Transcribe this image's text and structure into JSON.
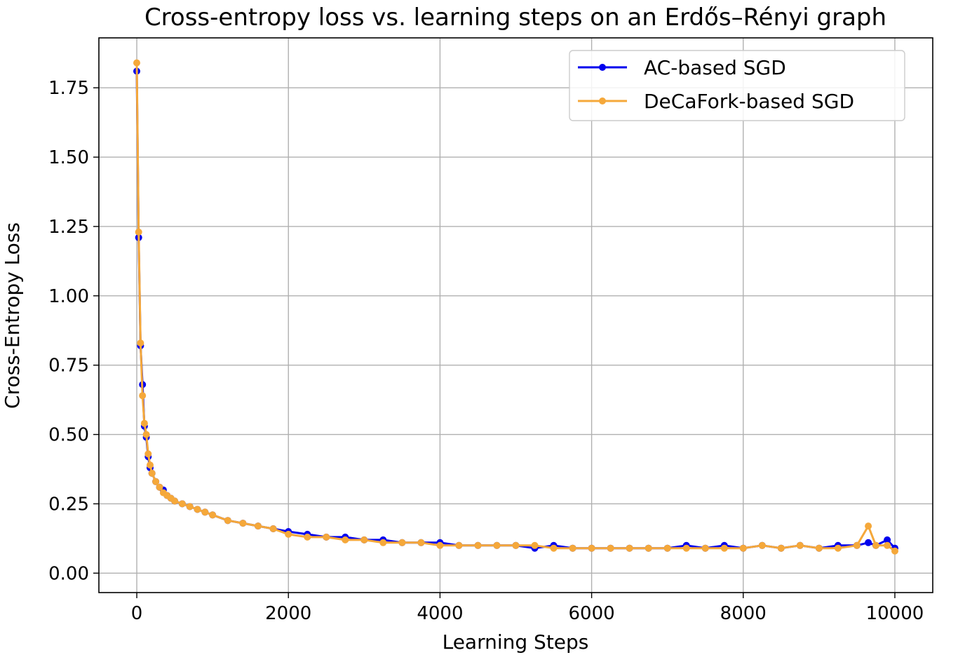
{
  "chart_data": {
    "type": "line",
    "title": "Cross-entropy loss vs. learning steps on an Erdős–Rényi graph",
    "xlabel": "Learning Steps",
    "ylabel": "Cross-Entropy Loss",
    "xlim": [
      -500,
      10500
    ],
    "ylim": [
      -0.07,
      1.93
    ],
    "xticks": [
      0,
      2000,
      4000,
      6000,
      8000,
      10000
    ],
    "xtick_labels": [
      "0",
      "2000",
      "4000",
      "6000",
      "8000",
      "10000"
    ],
    "yticks": [
      0.0,
      0.25,
      0.5,
      0.75,
      1.0,
      1.25,
      1.5,
      1.75
    ],
    "ytick_labels": [
      "0.00",
      "0.25",
      "0.50",
      "0.75",
      "1.00",
      "1.25",
      "1.50",
      "1.75"
    ],
    "grid": true,
    "legend_position": "top-right",
    "x": [
      0,
      25,
      50,
      75,
      100,
      125,
      150,
      175,
      200,
      250,
      300,
      350,
      400,
      450,
      500,
      600,
      700,
      800,
      900,
      1000,
      1200,
      1400,
      1600,
      1800,
      2000,
      2250,
      2500,
      2750,
      3000,
      3250,
      3500,
      3750,
      4000,
      4250,
      4500,
      4750,
      5000,
      5250,
      5500,
      5750,
      6000,
      6250,
      6500,
      6750,
      7000,
      7250,
      7500,
      7750,
      8000,
      8250,
      8500,
      8750,
      9000,
      9250,
      9500,
      9650,
      9750,
      9900,
      10000
    ],
    "series": [
      {
        "name": "AC-based SGD",
        "color": "#0000ee",
        "values": [
          1.81,
          1.21,
          0.82,
          0.68,
          0.53,
          0.49,
          0.42,
          0.38,
          0.36,
          0.33,
          0.31,
          0.3,
          0.28,
          0.27,
          0.26,
          0.25,
          0.24,
          0.23,
          0.22,
          0.21,
          0.19,
          0.18,
          0.17,
          0.16,
          0.15,
          0.14,
          0.13,
          0.13,
          0.12,
          0.12,
          0.11,
          0.11,
          0.11,
          0.1,
          0.1,
          0.1,
          0.1,
          0.09,
          0.1,
          0.09,
          0.09,
          0.09,
          0.09,
          0.09,
          0.09,
          0.1,
          0.09,
          0.1,
          0.09,
          0.1,
          0.09,
          0.1,
          0.09,
          0.1,
          0.1,
          0.11,
          0.1,
          0.12,
          0.09
        ]
      },
      {
        "name": "DeCaFork-based SGD",
        "color": "#f5a83a",
        "values": [
          1.84,
          1.23,
          0.83,
          0.64,
          0.54,
          0.5,
          0.43,
          0.39,
          0.36,
          0.33,
          0.31,
          0.29,
          0.28,
          0.27,
          0.26,
          0.25,
          0.24,
          0.23,
          0.22,
          0.21,
          0.19,
          0.18,
          0.17,
          0.16,
          0.14,
          0.13,
          0.13,
          0.12,
          0.12,
          0.11,
          0.11,
          0.11,
          0.1,
          0.1,
          0.1,
          0.1,
          0.1,
          0.1,
          0.09,
          0.09,
          0.09,
          0.09,
          0.09,
          0.09,
          0.09,
          0.09,
          0.09,
          0.09,
          0.09,
          0.1,
          0.09,
          0.1,
          0.09,
          0.09,
          0.1,
          0.17,
          0.1,
          0.1,
          0.08
        ]
      }
    ]
  }
}
